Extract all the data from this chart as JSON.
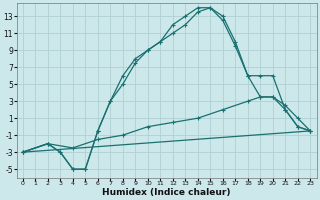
{
  "xlabel": "Humidex (Indice chaleur)",
  "bg_color": "#cce8ea",
  "grid_color": "#b0d0d4",
  "line_color": "#1a7070",
  "xlim": [
    -0.5,
    23.5
  ],
  "ylim": [
    -6,
    14.5
  ],
  "xticks": [
    0,
    1,
    2,
    3,
    4,
    5,
    6,
    7,
    8,
    9,
    10,
    11,
    12,
    13,
    14,
    15,
    16,
    17,
    18,
    19,
    20,
    21,
    22,
    23
  ],
  "yticks": [
    -5,
    -3,
    -1,
    1,
    3,
    5,
    7,
    9,
    11,
    13
  ],
  "series1_x": [
    0,
    2,
    3,
    4,
    5,
    6,
    7,
    8,
    9,
    10,
    11,
    12,
    13,
    14,
    15,
    16,
    17,
    18,
    19,
    20,
    21,
    22,
    23
  ],
  "series1_y": [
    -3,
    -2,
    -3,
    -5,
    -5,
    -0.5,
    3,
    6,
    8,
    9,
    10,
    12,
    13,
    14,
    14,
    13,
    10,
    6,
    6,
    6,
    2,
    0,
    -0.5
  ],
  "series2_x": [
    0,
    2,
    3,
    4,
    5,
    6,
    7,
    8,
    9,
    10,
    11,
    12,
    13,
    14,
    15,
    16,
    17,
    18,
    19,
    20,
    21,
    22,
    23
  ],
  "series2_y": [
    -3,
    -2,
    -3,
    -5,
    -5,
    -0.5,
    3,
    5,
    7.5,
    9,
    10,
    11,
    12,
    13.5,
    14,
    12.5,
    9.5,
    6,
    3.5,
    3.5,
    2,
    0,
    -0.5
  ],
  "series3_x": [
    0,
    23
  ],
  "series3_y": [
    -3,
    -0.5
  ],
  "series4_x": [
    0,
    2,
    4,
    6,
    8,
    10,
    12,
    14,
    16,
    18,
    19,
    20,
    21,
    22,
    23
  ],
  "series4_y": [
    -3,
    -2,
    -2.5,
    -1.5,
    -1,
    0,
    0.5,
    1,
    2,
    3,
    3.5,
    3.5,
    2.5,
    1,
    -0.5
  ]
}
